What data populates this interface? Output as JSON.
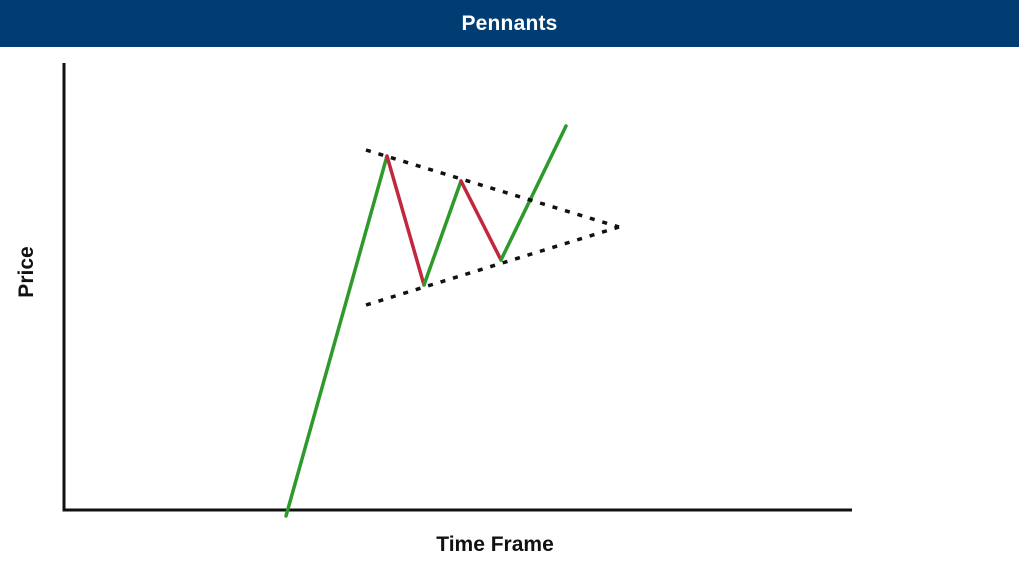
{
  "header": {
    "title": "Pennants",
    "background_color": "#013d73",
    "text_color": "#ffffff"
  },
  "chart_data": {
    "type": "line",
    "xlabel": "Time Frame",
    "ylabel": "Price",
    "ticks": "none",
    "grid": false,
    "legend": "none",
    "colors": {
      "up_move": "#2e9a2b",
      "down_move": "#c1283f",
      "trendline": "#111111",
      "axis": "#111111"
    }
  }
}
